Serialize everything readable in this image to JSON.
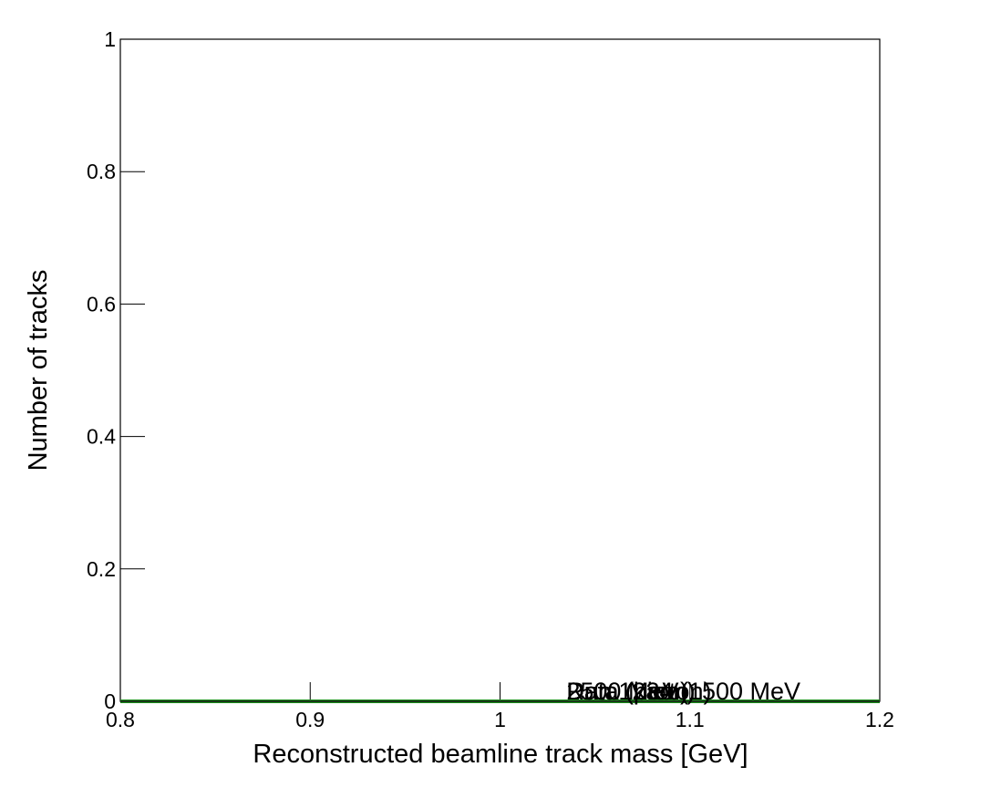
{
  "chart_data": {
    "type": "line",
    "title": "",
    "xlabel": "Reconstructed beamline track mass [GeV]",
    "ylabel": "Number of tracks",
    "xlim": [
      0.8,
      1.2
    ],
    "ylim": [
      0,
      1
    ],
    "x_ticks": [
      "0.8",
      "0.9",
      "1",
      "1.1",
      "1.2"
    ],
    "y_ticks": [
      "0",
      "0.2",
      "0.4",
      "0.6",
      "0.8",
      "1"
    ],
    "grid": false,
    "series": [
      {
        "x": [
          0.8,
          1.2
        ],
        "values": [
          0,
          0
        ],
        "color": "#1a8f1a"
      },
      {
        "x": [
          0.8,
          1.2
        ],
        "values": [
          0,
          0
        ],
        "color": "#1a1a1a"
      }
    ],
    "annotations": [
      {
        "text": "Data (pion)",
        "x": 1.035,
        "y": 0
      },
      {
        "text": "Data (proton)",
        "x": 1.035,
        "y": 0
      },
      {
        "text": "Data (kaon)",
        "x": 1.035,
        "y": 0
      },
      {
        "text": "2500 MeV",
        "x": 1.035,
        "y": 0
      },
      {
        "text": "Run 1234 (1500 MeV",
        "x": 1.035,
        "y": 0
      }
    ]
  }
}
